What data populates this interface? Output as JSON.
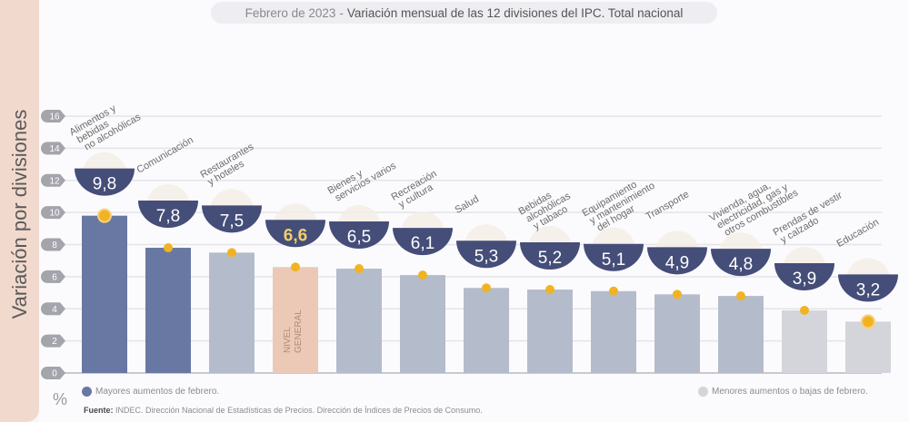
{
  "header": {
    "title_prefix": "Febrero de 2023",
    "title_separator": "-",
    "title_main": "Variación mensual de las 12 divisiones del IPC. Total nacional"
  },
  "colors": {
    "top_increase": "#6878a2",
    "middle": "#b4bccb",
    "general_level": "#ecc9b7",
    "lower_increase": "#d3d5da",
    "badge": "#454d79",
    "marker": "#f0b323",
    "badge_text_general": "#f1cf6a"
  },
  "legend": {
    "higher": "Mayores aumentos de febrero.",
    "lower": "Menores aumentos o bajas de febrero."
  },
  "footer": {
    "source_label": "Fuente:",
    "source_text": "INDEC. Dirección Nacional de Estadísticas de Precios. Dirección de Índices de Precios de Consumo.",
    "unit": "%"
  },
  "chart_data": {
    "type": "bar",
    "title": "Febrero de 2023 - Variación mensual de las 12 divisiones del IPC. Total nacional",
    "xlabel": "",
    "ylabel": "Variación por divisiones",
    "yunit": "%",
    "ylim": [
      0,
      16
    ],
    "yticks": [
      0,
      2,
      4,
      6,
      8,
      10,
      12,
      14,
      16
    ],
    "grid": true,
    "legend_position": "bottom",
    "categories": [
      "Alimentos y bebidas no alcohólicas",
      "Comunicación",
      "Restaurantes y hoteles",
      "Nivel general",
      "Bienes y servicios varios",
      "Recreación y cultura",
      "Salud",
      "Bebidas alcohólicas y tabaco",
      "Equipamiento y mantenimiento del hogar",
      "Transporte",
      "Vivienda, agua, electricidad, gas y otros combustibles",
      "Prendas de vestir y calzado",
      "Educación"
    ],
    "label_lines": [
      [
        "Alimentos y",
        "bebidas",
        "no alcohólicas"
      ],
      [
        "Comunicación"
      ],
      [
        "Restaurantes",
        "y hoteles"
      ],
      [],
      [
        "Bienes y",
        "servicios varios"
      ],
      [
        "Recreación",
        "y cultura"
      ],
      [
        "Salud"
      ],
      [
        "Bebidas",
        "alcohólicas",
        "y tabaco"
      ],
      [
        "Equipamiento",
        "y mantenimiento",
        "del hogar"
      ],
      [
        "Transporte"
      ],
      [
        "Vivienda, agua,",
        "electricidad, gas y",
        "otros combustibles"
      ],
      [
        "Prendas de vestir",
        "y calzado"
      ],
      [
        "Educación"
      ]
    ],
    "bar_inner_label": [
      "",
      "",
      "",
      "NIVEL GENERAL",
      "",
      "",
      "",
      "",
      "",
      "",
      "",
      "",
      ""
    ],
    "values": [
      9.8,
      7.8,
      7.5,
      6.6,
      6.5,
      6.1,
      5.3,
      5.2,
      5.1,
      4.9,
      4.8,
      3.9,
      3.2
    ],
    "value_labels": [
      "9,8",
      "7,8",
      "7,5",
      "6,6",
      "6,5",
      "6,1",
      "5,3",
      "5,2",
      "5,1",
      "4,9",
      "4,8",
      "3,9",
      "3,2"
    ],
    "groups": [
      "top",
      "top",
      "middle",
      "general",
      "middle",
      "middle",
      "middle",
      "middle",
      "middle",
      "middle",
      "middle",
      "lower",
      "lower"
    ],
    "icons": [
      "food-icon",
      "phone-icon",
      "cutlery-icon",
      "shopping-bag-icon",
      "comb-scissors-icon",
      "sun-umbrella-icon",
      "first-aid-icon",
      "bottle-glass-icon",
      "washing-machine-icon",
      "sube-card-car-icon",
      "lightbulb-key-icon",
      "tshirt-shoe-icon",
      "notebook-icon"
    ],
    "legend": [
      "Mayores aumentos de febrero.",
      "Menores aumentos o bajas de febrero."
    ]
  }
}
